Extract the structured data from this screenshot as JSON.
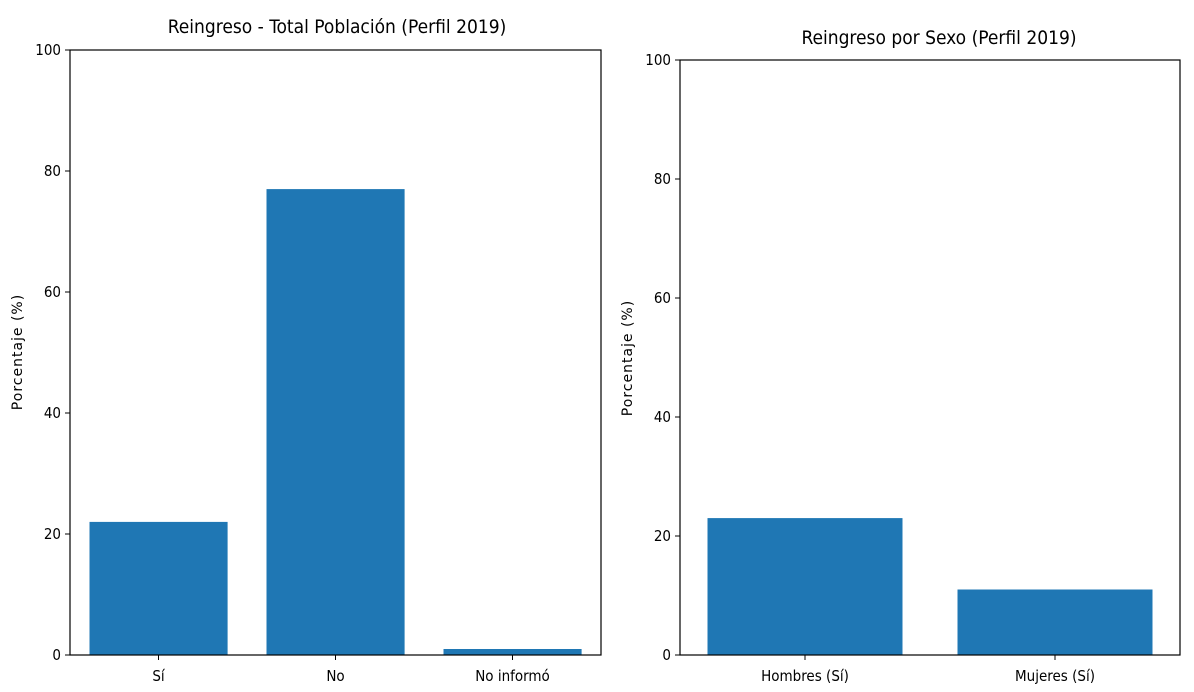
{
  "chart_data": [
    {
      "type": "bar",
      "title": "Reingreso - Total Población (Perfil 2019)",
      "xlabel": "",
      "ylabel": "Porcentaje (%)",
      "categories": [
        "Sí",
        "No",
        "No informó"
      ],
      "values": [
        22,
        77,
        1
      ],
      "ylim": [
        0,
        100
      ],
      "yticks": [
        "0",
        "20",
        "40",
        "60",
        "80",
        "100"
      ],
      "grid": false,
      "bar_color": "#1f77b4"
    },
    {
      "type": "bar",
      "title": "Reingreso por Sexo (Perfil 2019)",
      "xlabel": "",
      "ylabel": "Porcentaje (%)",
      "categories": [
        "Hombres (Sí)",
        "Mujeres (Sí)"
      ],
      "values": [
        23,
        11
      ],
      "ylim": [
        0,
        100
      ],
      "yticks": [
        "0",
        "20",
        "40",
        "60",
        "80",
        "100"
      ],
      "grid": false,
      "bar_color": "#1f77b4"
    }
  ]
}
